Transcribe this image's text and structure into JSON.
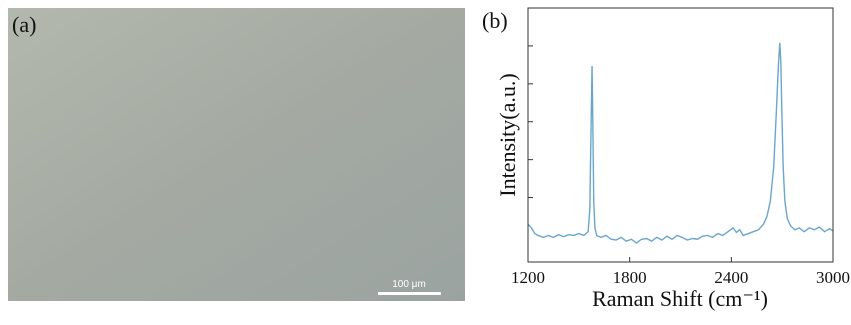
{
  "image_panel": {
    "label": "(a)",
    "scale_bar": "100 μm"
  },
  "chart_data": {
    "type": "line",
    "panel_label": "(b)",
    "xlabel": "Raman Shift (cm⁻¹)",
    "ylabel": "Intensity(a.u.)",
    "x": [
      1200,
      1220,
      1240,
      1260,
      1290,
      1320,
      1350,
      1380,
      1410,
      1440,
      1470,
      1500,
      1530,
      1555,
      1565,
      1572,
      1578,
      1582,
      1588,
      1595,
      1605,
      1630,
      1660,
      1690,
      1720,
      1750,
      1780,
      1810,
      1840,
      1870,
      1900,
      1930,
      1960,
      1990,
      2020,
      2050,
      2080,
      2110,
      2140,
      2170,
      2200,
      2230,
      2260,
      2290,
      2320,
      2350,
      2380,
      2410,
      2430,
      2450,
      2470,
      2500,
      2530,
      2560,
      2590,
      2610,
      2630,
      2650,
      2665,
      2678,
      2686,
      2692,
      2698,
      2706,
      2716,
      2730,
      2750,
      2775,
      2800,
      2830,
      2860,
      2890,
      2920,
      2950,
      2980,
      3000
    ],
    "values": [
      0.3,
      0.2,
      0.05,
      0.0,
      -0.05,
      0.0,
      -0.05,
      0.02,
      -0.03,
      0.02,
      0.0,
      0.05,
      0.0,
      0.1,
      0.7,
      2.8,
      4.47,
      3.2,
      0.9,
      0.2,
      0.0,
      -0.05,
      0.0,
      -0.1,
      -0.12,
      -0.05,
      -0.15,
      -0.1,
      -0.2,
      -0.1,
      -0.08,
      -0.15,
      -0.05,
      -0.12,
      -0.02,
      -0.1,
      0.0,
      -0.05,
      -0.12,
      -0.08,
      -0.1,
      -0.02,
      0.0,
      -0.05,
      0.05,
      0.0,
      0.1,
      0.2,
      0.08,
      0.15,
      0.0,
      0.05,
      0.1,
      0.15,
      0.3,
      0.5,
      0.9,
      1.8,
      3.2,
      4.5,
      5.08,
      4.6,
      3.3,
      1.8,
      0.9,
      0.45,
      0.25,
      0.15,
      0.2,
      0.1,
      0.2,
      0.15,
      0.22,
      0.1,
      0.18,
      0.12
    ],
    "color": "#6aa6cc",
    "xlim": [
      1200,
      3000
    ],
    "xticks": [
      1200,
      1800,
      2400,
      3000
    ],
    "ylim": [
      -0.7,
      6
    ],
    "yticks": [
      1,
      2,
      3,
      4,
      5
    ]
  }
}
